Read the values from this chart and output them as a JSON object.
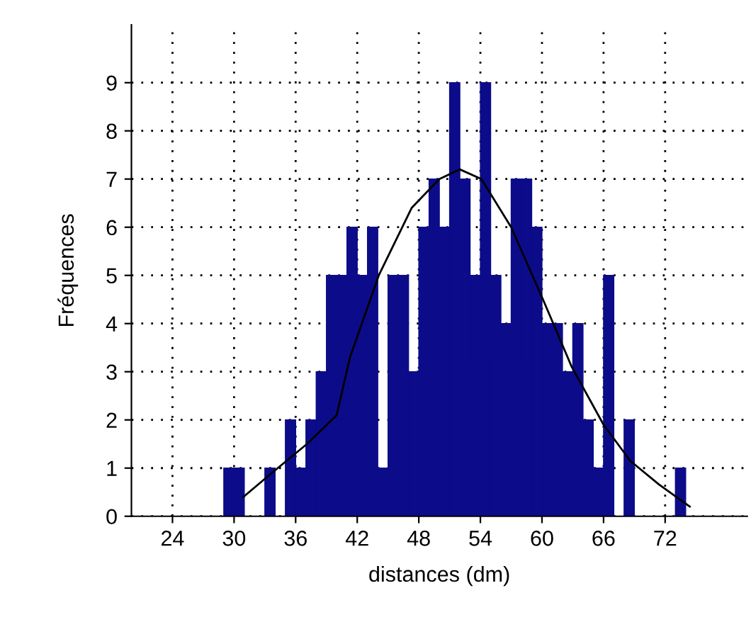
{
  "chart_data": {
    "type": "histogram",
    "xlabel": "distances (dm)",
    "ylabel": "Fréquences",
    "bins": [
      29,
      30,
      31,
      32,
      33,
      34,
      35,
      36,
      37,
      38,
      39,
      40,
      41,
      42,
      43,
      44,
      45,
      46,
      47,
      48,
      49,
      50,
      51,
      52,
      53,
      54,
      55,
      56,
      57,
      58,
      59,
      60,
      61,
      62,
      63,
      64,
      65,
      66,
      67,
      68,
      69,
      70,
      71,
      72,
      73,
      74
    ],
    "values": [
      1,
      1,
      0,
      0,
      1,
      0,
      2,
      1,
      2,
      3,
      5,
      5,
      6,
      5,
      6,
      1,
      5,
      5,
      3,
      6,
      7,
      6,
      9,
      7,
      5,
      9,
      5,
      4,
      7,
      7,
      6,
      4,
      4,
      3,
      4,
      2,
      1,
      5,
      0,
      2,
      0,
      0,
      0,
      0,
      1
    ],
    "color": "#0c0c8a",
    "series": [
      {
        "type": "line",
        "color": "#000000",
        "x": [
          30.9,
          33.4,
          37.1,
          40,
          41.3,
          44.1,
          47.3,
          50,
          52,
          54.1,
          57,
          60.1,
          62.9,
          66,
          68.6,
          71.4,
          74.4
        ],
        "values": [
          0.4,
          0.85,
          1.5,
          2.1,
          3.3,
          5.0,
          6.4,
          7.0,
          7.2,
          7.0,
          6.0,
          4.5,
          3.1,
          1.9,
          1.15,
          0.66,
          0.2
        ]
      }
    ],
    "xlim": [
      20,
      80
    ],
    "ylim": [
      0,
      10.2
    ],
    "xticks": [
      24,
      30,
      36,
      42,
      48,
      54,
      60,
      66,
      72
    ],
    "yticks": [
      0,
      1,
      2,
      3,
      4,
      5,
      6,
      7,
      8,
      9
    ],
    "grid": true
  }
}
